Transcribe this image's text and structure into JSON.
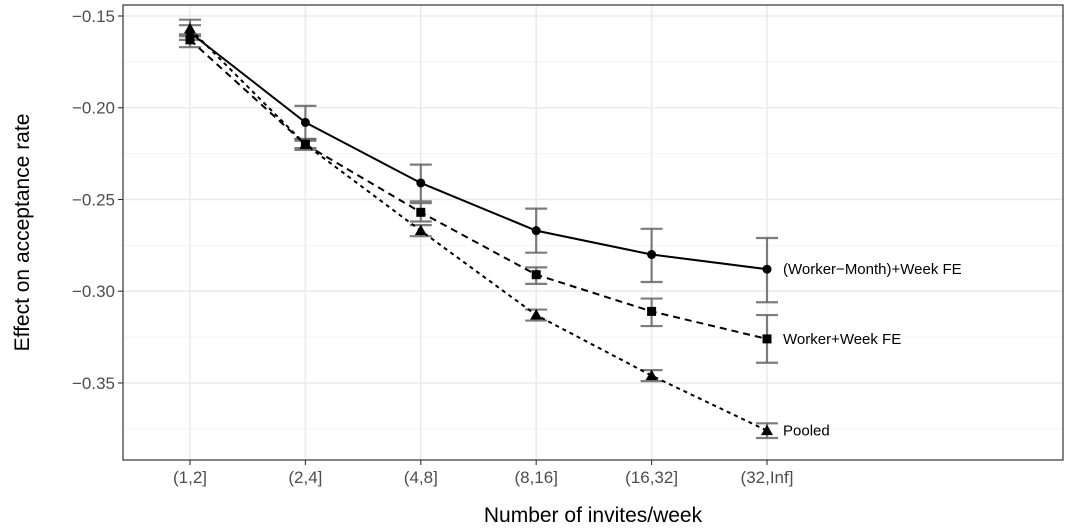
{
  "chart_data": {
    "type": "line",
    "xlabel": "Number of invites/week",
    "ylabel": "Effect on acceptance rate",
    "categories": [
      "(1,2]",
      "(2,4]",
      "(4,8]",
      "(8,16]",
      "(16,32]",
      "(32,Inf]"
    ],
    "ylim": [
      -0.392,
      -0.144
    ],
    "yticks": [
      -0.15,
      -0.2,
      -0.25,
      -0.3,
      -0.35
    ],
    "ytick_labels": [
      "−0.15",
      "−0.20",
      "−0.25",
      "−0.30",
      "−0.35"
    ],
    "grid": true,
    "series": [
      {
        "name": "(Worker−Month)+Week FE",
        "marker": "circle",
        "linestyle": "solid",
        "values": [
          -0.159,
          -0.208,
          -0.241,
          -0.267,
          -0.28,
          -0.288
        ],
        "error_low": [
          -0.163,
          -0.217,
          -0.251,
          -0.279,
          -0.295,
          -0.306
        ],
        "error_high": [
          -0.155,
          -0.199,
          -0.231,
          -0.255,
          -0.266,
          -0.271
        ]
      },
      {
        "name": "Worker+Week FE",
        "marker": "square",
        "linestyle": "dashed",
        "values": [
          -0.163,
          -0.22,
          -0.257,
          -0.291,
          -0.311,
          -0.326
        ],
        "error_low": [
          -0.167,
          -0.223,
          -0.262,
          -0.296,
          -0.319,
          -0.339
        ],
        "error_high": [
          -0.16,
          -0.217,
          -0.252,
          -0.287,
          -0.304,
          -0.313
        ]
      },
      {
        "name": "Pooled",
        "marker": "triangle",
        "linestyle": "dotted",
        "values": [
          -0.157,
          -0.22,
          -0.267,
          -0.313,
          -0.346,
          -0.376
        ],
        "error_low": [
          -0.161,
          -0.222,
          -0.27,
          -0.316,
          -0.349,
          -0.38
        ],
        "error_high": [
          -0.152,
          -0.218,
          -0.264,
          -0.31,
          -0.343,
          -0.372
        ]
      }
    ]
  }
}
